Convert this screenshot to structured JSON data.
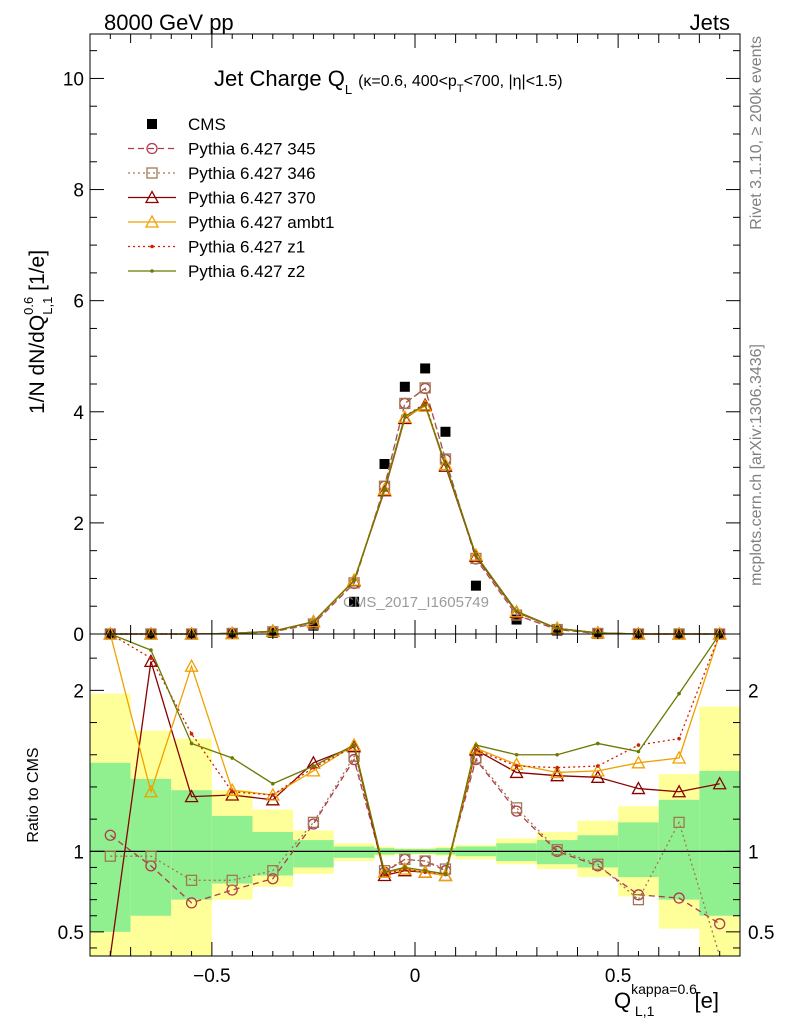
{
  "header": {
    "left": "8000 GeV pp",
    "right": "Jets"
  },
  "side_text": {
    "rivet": "Rivet 3.1.10, ≥ 200k events",
    "mcplots": "mcplots.cern.ch [arXiv:1306.3436]"
  },
  "watermark": "CMS_2017_I1605749",
  "top_title": {
    "main": "Jet Charge Q",
    "main_sub": "L",
    "cond_1": "(κ=0.6, 400<p",
    "cond_sub": "T",
    "cond_2": "<700, |η|<1.5)"
  },
  "top_ylabel": {
    "pre": "1/N dN/dQ",
    "sup": "0.6",
    "sub": "L,1",
    "post": " [1/e]"
  },
  "ratio_ylabel": "Ratio to CMS",
  "xlabel": {
    "pre": "Q",
    "sup": "kappa=0.6",
    "sub": "L,1",
    "post": " [e]"
  },
  "chart_data": [
    {
      "type": "line",
      "panel": "main",
      "x": [
        -0.75,
        -0.65,
        -0.55,
        -0.45,
        -0.35,
        -0.25,
        -0.15,
        -0.075,
        -0.025,
        0.025,
        0.075,
        0.15,
        0.25,
        0.35,
        0.45,
        0.55,
        0.65,
        0.75
      ],
      "xlim": [
        -0.8,
        0.8
      ],
      "ylim": [
        0,
        10.8
      ],
      "x_ticks": [
        -0.5,
        0,
        0.5
      ],
      "x_tick_labels": [
        "−0.5",
        "0",
        "0.5"
      ],
      "y_ticks": [
        0,
        2,
        4,
        6,
        8,
        10
      ],
      "y_tick_labels": [
        "0",
        "2",
        "4",
        "6",
        "8",
        "10"
      ],
      "legend_position": "top-left",
      "series": [
        {
          "name": "CMS",
          "color": "#000000",
          "marker": "filled-square",
          "line": "none",
          "values": [
            0.0,
            0.0,
            0.0,
            0.0,
            0.02,
            0.15,
            0.58,
            3.06,
            4.45,
            4.78,
            3.64,
            0.87,
            0.26,
            0.06,
            0.01,
            0.0,
            0.0,
            0.0
          ]
        },
        {
          "name": "Pythia 6.427 345",
          "color": "#b03a4e",
          "marker": "open-circle",
          "line": "dashed",
          "values": [
            0.0,
            0.0,
            0.0,
            0.01,
            0.04,
            0.18,
            0.91,
            2.66,
            4.15,
            4.42,
            3.14,
            1.35,
            0.34,
            0.08,
            0.01,
            0.0,
            0.0,
            0.0
          ]
        },
        {
          "name": "Pythia 6.427 346",
          "color": "#a07850",
          "marker": "open-square",
          "line": "dotted",
          "values": [
            0.0,
            0.0,
            0.0,
            0.01,
            0.04,
            0.18,
            0.92,
            2.66,
            4.15,
            4.43,
            3.15,
            1.36,
            0.34,
            0.08,
            0.01,
            0.0,
            0.0,
            0.0
          ]
        },
        {
          "name": "Pythia 6.427 370",
          "color": "#8b0000",
          "marker": "open-triangle",
          "line": "solid",
          "values": [
            0.0,
            0.0,
            0.0,
            0.01,
            0.05,
            0.22,
            0.96,
            2.58,
            3.88,
            4.12,
            3.02,
            1.4,
            0.39,
            0.1,
            0.02,
            0.0,
            0.0,
            0.0
          ]
        },
        {
          "name": "Pythia 6.427 ambt1",
          "color": "#f0a000",
          "marker": "open-triangle",
          "line": "solid",
          "values": [
            0.0,
            0.0,
            0.0,
            0.01,
            0.05,
            0.22,
            0.97,
            2.6,
            3.9,
            4.1,
            3.05,
            1.42,
            0.4,
            0.1,
            0.02,
            0.0,
            0.0,
            0.0
          ]
        },
        {
          "name": "Pythia 6.427 z1",
          "color": "#cc2200",
          "marker": "small-dot",
          "line": "dotted",
          "values": [
            0.0,
            0.0,
            0.0,
            0.01,
            0.05,
            0.21,
            0.96,
            2.6,
            3.92,
            4.15,
            3.05,
            1.41,
            0.4,
            0.1,
            0.02,
            0.0,
            0.0,
            0.0
          ]
        },
        {
          "name": "Pythia 6.427 z2",
          "color": "#6b7a00",
          "marker": "small-dot",
          "line": "solid",
          "values": [
            0.0,
            0.0,
            0.0,
            0.01,
            0.05,
            0.22,
            0.96,
            2.6,
            3.92,
            4.12,
            3.06,
            1.42,
            0.41,
            0.1,
            0.02,
            0.0,
            0.0,
            0.0
          ]
        }
      ]
    },
    {
      "type": "line",
      "panel": "ratio",
      "ylabel": "Ratio to CMS",
      "x": [
        -0.75,
        -0.65,
        -0.55,
        -0.45,
        -0.35,
        -0.25,
        -0.15,
        -0.075,
        -0.025,
        0.025,
        0.075,
        0.15,
        0.25,
        0.35,
        0.45,
        0.55,
        0.65,
        0.75
      ],
      "xlim": [
        -0.8,
        0.8
      ],
      "ylim": [
        0.35,
        2.35
      ],
      "y_ticks": [
        0.5,
        1,
        2
      ],
      "y_tick_labels": [
        "0.5",
        "1",
        "2"
      ],
      "bands": {
        "edges": [
          -0.8,
          -0.7,
          -0.6,
          -0.5,
          -0.4,
          -0.3,
          -0.2,
          -0.1,
          -0.05,
          0,
          0.05,
          0.1,
          0.2,
          0.3,
          0.4,
          0.5,
          0.6,
          0.7,
          0.8
        ],
        "inner_color": "#90f090",
        "outer_color": "#ffff99",
        "inner_low": [
          0.5,
          0.6,
          0.7,
          0.8,
          0.85,
          0.9,
          0.96,
          0.98,
          0.985,
          0.985,
          0.98,
          0.97,
          0.94,
          0.92,
          0.9,
          0.84,
          0.7,
          0.6
        ],
        "inner_high": [
          1.55,
          1.45,
          1.38,
          1.22,
          1.12,
          1.07,
          1.03,
          1.02,
          1.015,
          1.015,
          1.02,
          1.03,
          1.05,
          1.07,
          1.1,
          1.18,
          1.32,
          1.5
        ],
        "outer_low": [
          0.35,
          0.35,
          0.35,
          0.7,
          0.78,
          0.86,
          0.94,
          0.97,
          0.98,
          0.98,
          0.97,
          0.95,
          0.92,
          0.89,
          0.84,
          0.72,
          0.52,
          0.35
        ],
        "outer_high": [
          1.98,
          1.75,
          1.7,
          1.38,
          1.26,
          1.13,
          1.05,
          1.03,
          1.02,
          1.02,
          1.03,
          1.04,
          1.08,
          1.12,
          1.19,
          1.28,
          1.48,
          1.9
        ]
      },
      "series": [
        {
          "name": "Pythia 6.427 345",
          "color": "#b03a4e",
          "marker": "open-circle",
          "line": "dashed",
          "values": [
            1.1,
            0.91,
            0.68,
            0.76,
            0.83,
            1.17,
            1.57,
            0.87,
            0.95,
            0.94,
            0.88,
            1.57,
            1.25,
            1.0,
            0.91,
            0.73,
            0.71,
            0.55
          ]
        },
        {
          "name": "Pythia 6.427 346",
          "color": "#a07850",
          "marker": "open-square",
          "line": "dotted",
          "values": [
            0.97,
            0.97,
            0.82,
            0.82,
            0.88,
            1.18,
            1.59,
            0.88,
            0.95,
            0.94,
            0.89,
            1.58,
            1.27,
            1.01,
            0.92,
            0.7,
            1.18,
            0.3
          ]
        },
        {
          "name": "Pythia 6.427 370",
          "color": "#8b0000",
          "marker": "open-triangle",
          "line": "solid",
          "values": [
            0.3,
            2.18,
            1.34,
            1.35,
            1.32,
            1.55,
            1.65,
            0.85,
            0.88,
            0.87,
            0.85,
            1.63,
            1.49,
            1.47,
            1.46,
            1.39,
            1.37,
            1.42
          ]
        },
        {
          "name": "Pythia 6.427 ambt1",
          "color": "#f0a000",
          "marker": "open-triangle",
          "line": "solid",
          "values": [
            2.4,
            1.37,
            2.15,
            1.38,
            1.35,
            1.5,
            1.66,
            0.87,
            0.89,
            0.87,
            0.85,
            1.64,
            1.54,
            1.49,
            1.5,
            1.55,
            1.58,
            2.4
          ]
        },
        {
          "name": "Pythia 6.427 z1",
          "color": "#cc2200",
          "marker": "small-dot",
          "line": "dotted",
          "values": [
            2.4,
            2.2,
            1.73,
            1.37,
            1.35,
            1.52,
            1.65,
            0.86,
            0.89,
            0.87,
            0.86,
            1.63,
            1.53,
            1.52,
            1.53,
            1.66,
            1.7,
            2.4
          ]
        },
        {
          "name": "Pythia 6.427 z2",
          "color": "#6b7a00",
          "marker": "small-dot",
          "line": "solid",
          "values": [
            2.4,
            2.25,
            1.67,
            1.58,
            1.42,
            1.53,
            1.66,
            0.87,
            0.9,
            0.88,
            0.86,
            1.66,
            1.6,
            1.6,
            1.67,
            1.62,
            1.98,
            2.4
          ]
        }
      ]
    }
  ]
}
